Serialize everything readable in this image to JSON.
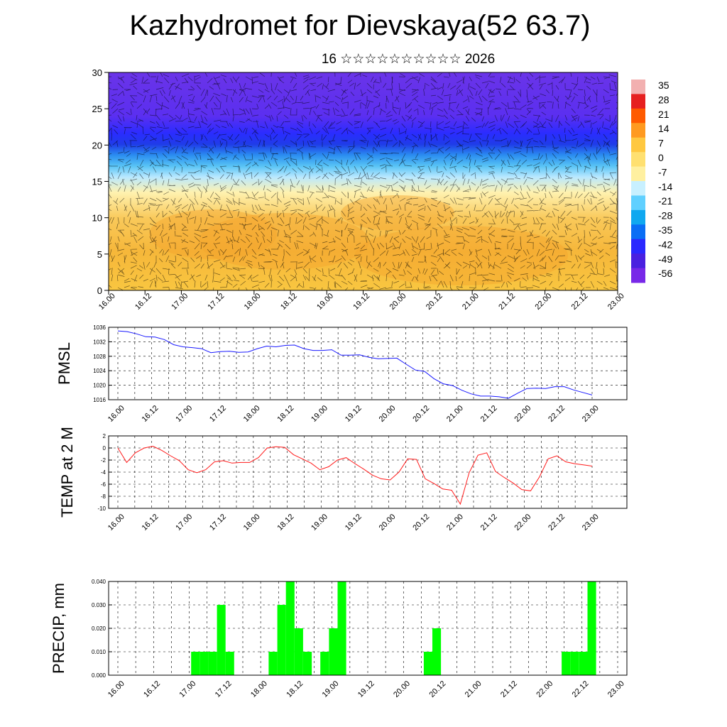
{
  "title": "Kazhydromet for Dievskaya(52 63.7)",
  "subtitle": "16 ☆☆☆☆☆☆☆☆☆☆ 2026",
  "x_tick_labels": [
    "16.00",
    "16.12",
    "17.00",
    "17.12",
    "18.00",
    "18.12",
    "19.00",
    "19.12",
    "20.00",
    "20.12",
    "21.00",
    "21.12",
    "22.00",
    "22.12",
    "23.00"
  ],
  "colors": {
    "pmsl_line": "#1a1aff",
    "temp_line": "#ff1a1a",
    "precip_bar": "#00ff00"
  },
  "chart_data": [
    {
      "type": "heatmap",
      "name": "vertical-section",
      "yticks": [
        "0",
        "5",
        "10",
        "15",
        "20",
        "25",
        "30"
      ],
      "ylim": [
        0,
        30
      ],
      "overlay": "wind barbs",
      "colorbar": {
        "labels": [
          "35",
          "28",
          "21",
          "14",
          "7",
          "0",
          "-7",
          "-14",
          "-21",
          "-28",
          "-35",
          "-42",
          "-49",
          "-56"
        ],
        "colors": [
          "#f2b0b0",
          "#e62020",
          "#ff5a00",
          "#ff9a20",
          "#ffc840",
          "#ffe070",
          "#fff0a0",
          "#c8f0ff",
          "#60d0ff",
          "#10a8f0",
          "#0a6ef5",
          "#2a28ff",
          "#4a20e0",
          "#7828e8"
        ]
      }
    },
    {
      "type": "line",
      "ylabel": "PMSL",
      "ylim": [
        1016,
        1036
      ],
      "yticks": [
        "1016",
        "1020",
        "1024",
        "1028",
        "1032",
        "1036"
      ],
      "values": [
        1035,
        1034.8,
        1034.2,
        1033.4,
        1033.3,
        1032.6,
        1031.2,
        1030.6,
        1030.4,
        1030.1,
        1029,
        1029.3,
        1029.4,
        1029.1,
        1029.2,
        1030.1,
        1030.8,
        1030.6,
        1031,
        1031.1,
        1030.1,
        1029.6,
        1029.6,
        1029.8,
        1028.3,
        1028.3,
        1028.4,
        1027.7,
        1027.3,
        1027.4,
        1027.5,
        1025.8,
        1024.2,
        1023.8,
        1021.8,
        1020.4,
        1019.9,
        1018.6,
        1017.6,
        1017,
        1017,
        1016.8,
        1016.4,
        1017.8,
        1019.1,
        1019.2,
        1019.1,
        1019.6,
        1019.6,
        1018.7,
        1018,
        1017.3
      ]
    },
    {
      "type": "line",
      "ylabel": "TEMP at 2 M",
      "ylim": [
        -10,
        2
      ],
      "yticks": [
        "2",
        "0",
        "-2",
        "-4",
        "-6",
        "-8",
        "-10"
      ],
      "values": [
        0,
        -2.4,
        -0.8,
        0,
        0.3,
        -0.4,
        -1.3,
        -2.1,
        -3.6,
        -4.1,
        -3.6,
        -2.3,
        -2.1,
        -2.5,
        -2.4,
        -2.4,
        -1.6,
        0,
        0.2,
        0.1,
        -1.1,
        -1.8,
        -2.5,
        -3.6,
        -3.1,
        -2,
        -1.6,
        -2.6,
        -3.5,
        -4.5,
        -5.1,
        -5.3,
        -4,
        -1.8,
        -1.9,
        -5.1,
        -5.9,
        -6.8,
        -7,
        -9.3,
        -4.1,
        -1.2,
        -0.8,
        -3.9,
        -4.9,
        -5.8,
        -6.9,
        -7.1,
        -4.8,
        -1.8,
        -1.3,
        -2.3,
        -2.6,
        -2.8,
        -3
      ]
    },
    {
      "type": "bar",
      "ylabel": "PRECIP, mm",
      "ylim": [
        0,
        0.04
      ],
      "yticks": [
        "0.000",
        "0.010",
        "0.020",
        "0.030",
        "0.040"
      ],
      "values": [
        0,
        0,
        0,
        0,
        0,
        0,
        0,
        0,
        0,
        0.01,
        0.01,
        0.01,
        0.03,
        0.01,
        0,
        0,
        0,
        0,
        0.01,
        0.03,
        0.04,
        0.02,
        0.01,
        0,
        0.01,
        0.02,
        0.04,
        0,
        0,
        0,
        0,
        0,
        0,
        0,
        0,
        0,
        0.01,
        0.02,
        0,
        0,
        0,
        0,
        0,
        0,
        0,
        0,
        0,
        0,
        0,
        0,
        0,
        0,
        0.01,
        0.01,
        0.01,
        0.04,
        0,
        0,
        0
      ]
    }
  ]
}
